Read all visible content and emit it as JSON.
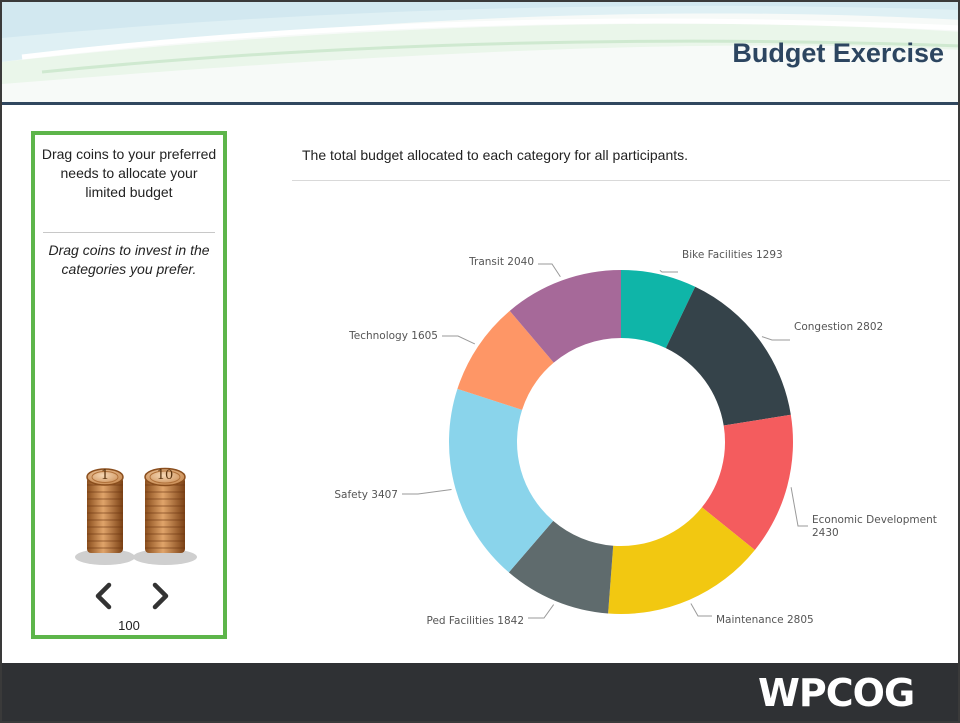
{
  "slide": {
    "title": "Budget Exercise",
    "logo_text": "WPCOG"
  },
  "coin_panel": {
    "instruction": "Drag coins to your preferred needs to allocate your limited budget",
    "hint": "Drag coins to invest in the categories you prefer.",
    "coins": [
      {
        "label": "1",
        "icon": "coin-stack-icon"
      },
      {
        "label": "10",
        "icon": "coin-stack-icon"
      }
    ],
    "prev_icon": "chevron-left-icon",
    "next_icon": "chevron-right-icon",
    "total": "100"
  },
  "chart": {
    "caption": "The total budget allocated to each category for all participants."
  },
  "chart_data": {
    "type": "pie",
    "donut": true,
    "legend": "none",
    "slices": [
      {
        "label": "Bike Facilities",
        "value": 1293,
        "color": "#0fb5a8"
      },
      {
        "label": "Congestion",
        "value": 2802,
        "color": "#35434a"
      },
      {
        "label": "Economic Development",
        "value": 2430,
        "color": "#f45c5e"
      },
      {
        "label": "Maintenance",
        "value": 2805,
        "color": "#f2c811"
      },
      {
        "label": "Ped Facilities",
        "value": 1842,
        "color": "#5f6b6d"
      },
      {
        "label": "Safety",
        "value": 3407,
        "color": "#8ad4eb"
      },
      {
        "label": "Technology",
        "value": 1605,
        "color": "#fe9666"
      },
      {
        "label": "Transit",
        "value": 2040,
        "color": "#a66999"
      }
    ]
  },
  "colors": {
    "panel_border": "#5db54a",
    "title": "#2c4560",
    "header_rule": "#30475f",
    "footer": "#2f3134"
  }
}
